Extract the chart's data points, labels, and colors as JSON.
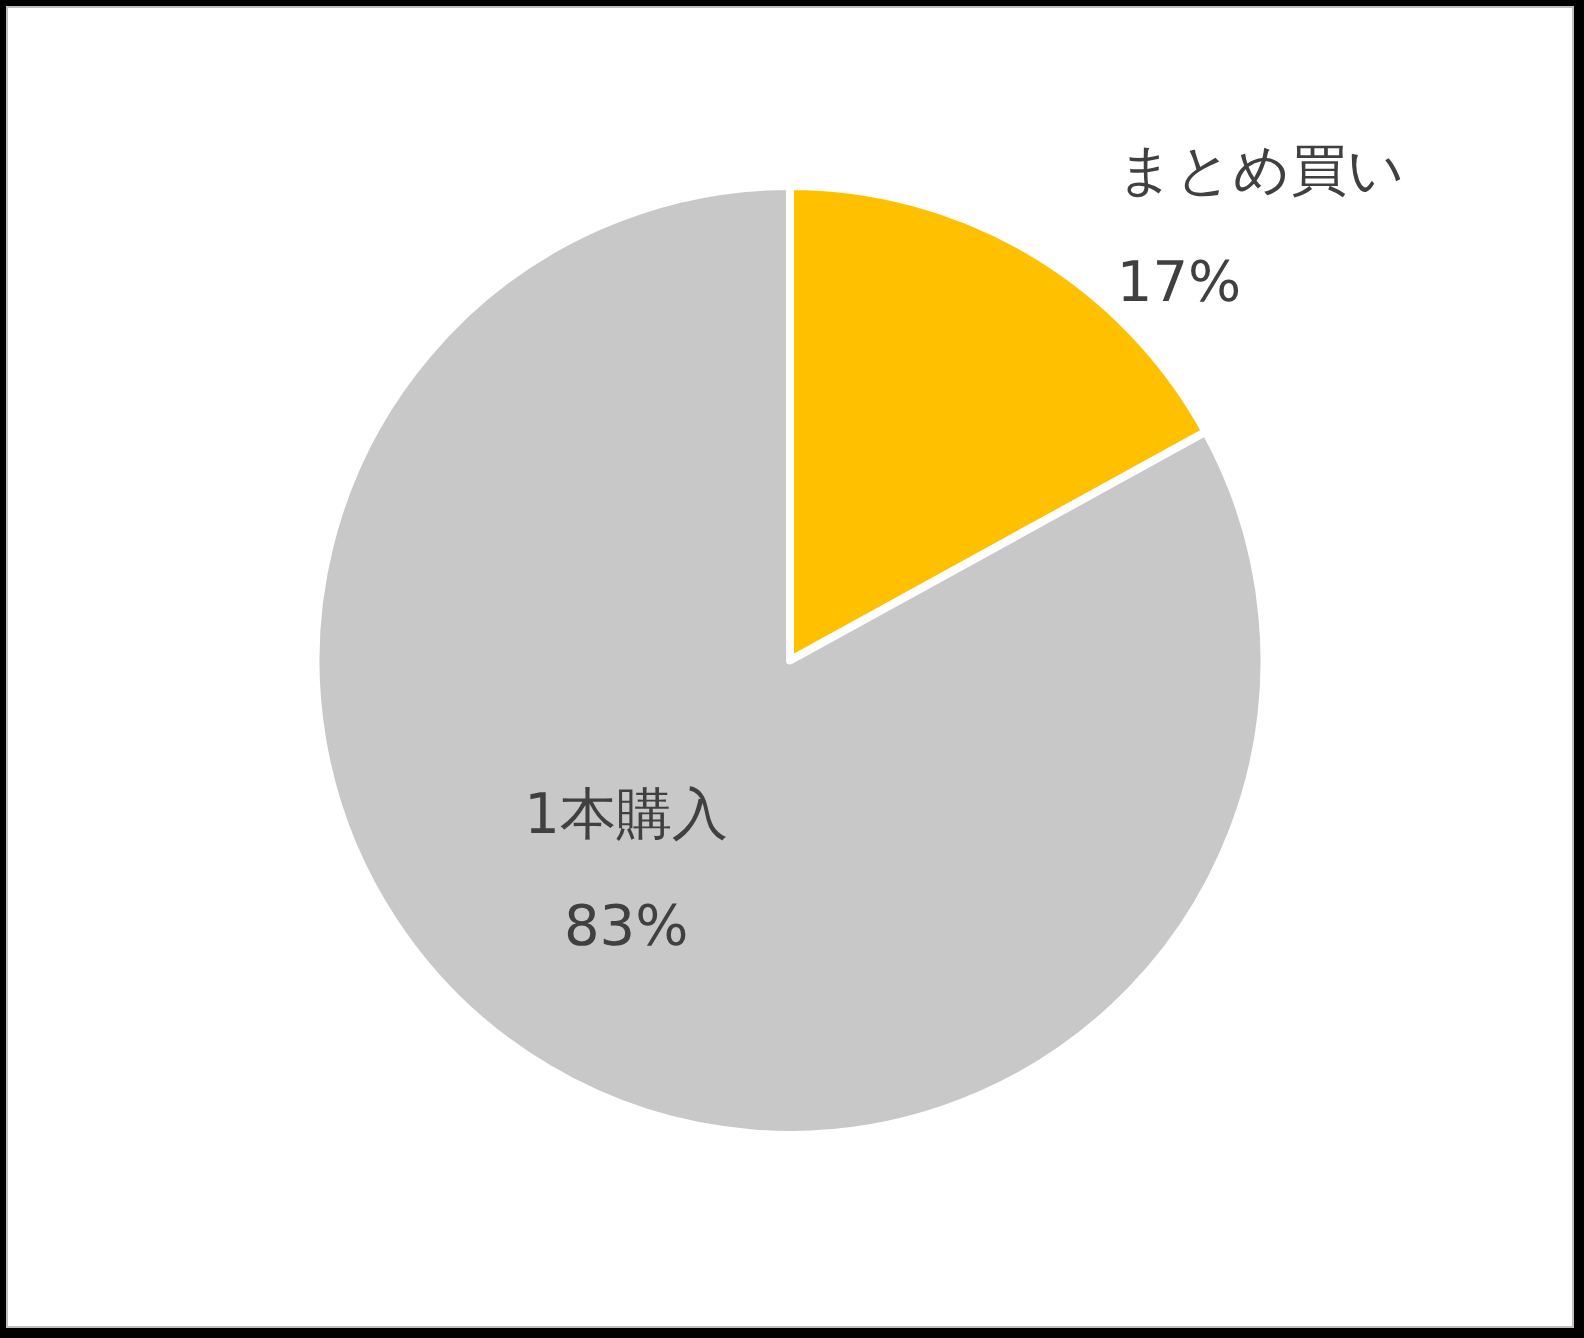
{
  "chart_data": {
    "type": "pie",
    "categories": [
      "まとめ買い",
      "1本購入"
    ],
    "values": [
      17,
      83
    ],
    "value_labels": [
      "17%",
      "83%"
    ],
    "colors": [
      "#ffc000",
      "#c8c8c8"
    ],
    "legend": false
  }
}
